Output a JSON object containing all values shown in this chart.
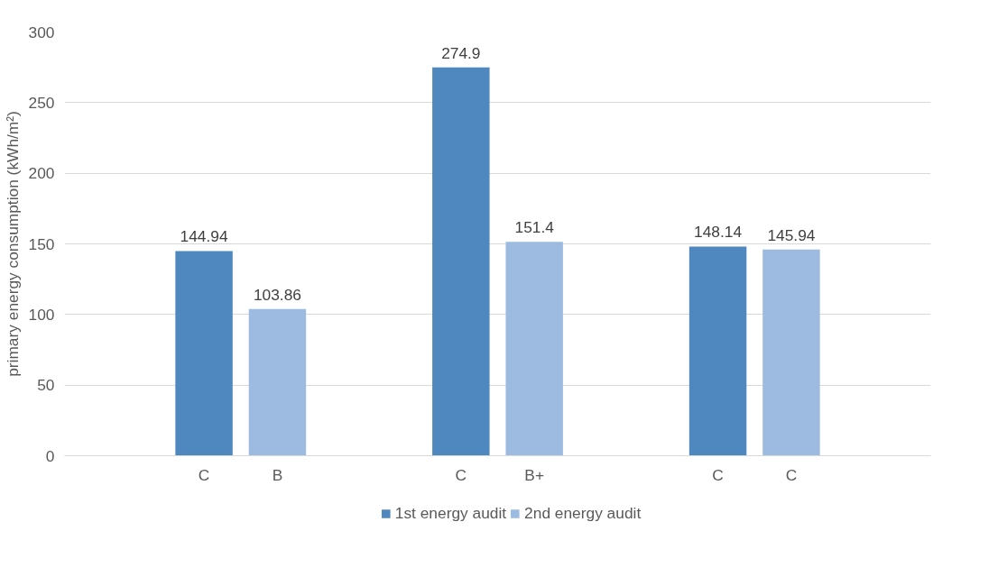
{
  "chart_data": {
    "type": "bar",
    "ylabel": "primary energy consumption (kWh/m²)",
    "categories": [
      "C",
      "B",
      "C",
      "B+",
      "C",
      "C"
    ],
    "series": [
      {
        "name": "1st energy audit",
        "color": "#4f88bf",
        "values": [
          144.94,
          null,
          274.9,
          null,
          148.14,
          null
        ]
      },
      {
        "name": "2nd energy audit",
        "color": "#9dbbe0",
        "values": [
          null,
          103.86,
          null,
          151.4,
          null,
          145.94
        ]
      }
    ],
    "ylim": [
      0,
      300
    ],
    "yticks": [
      0,
      50,
      100,
      150,
      200,
      250,
      300
    ],
    "grid": "y",
    "legend": "bottom",
    "data_labels": true
  }
}
